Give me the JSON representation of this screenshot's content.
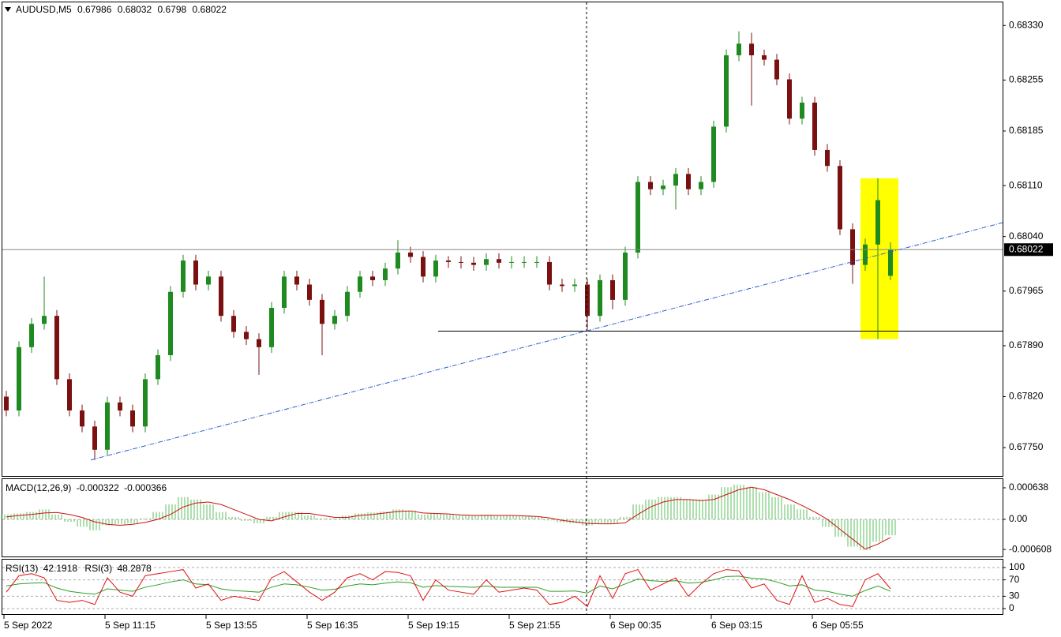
{
  "chart_data": {
    "type": "candlestick",
    "symbol": "AUDUSD,M5",
    "bull_color": "#1f8a1f",
    "bear_color": "#7a1010",
    "x_labels": [
      "5 Sep 2022",
      "5 Sep 11:15",
      "5 Sep 13:55",
      "5 Sep 16:35",
      "5 Sep 19:15",
      "5 Sep 21:55",
      "6 Sep 00:35",
      "6 Sep 03:15",
      "6 Sep 05:55"
    ],
    "ylim": [
      0.67711,
      0.68365
    ],
    "yticks": [
      {
        "value": 0.6833,
        "label": "0.68330"
      },
      0.68255,
      0.68185,
      {
        "value": 0.6811,
        "label": "0.68110"
      },
      {
        "value": 0.6804,
        "label": "0.68040"
      },
      0.67965,
      {
        "value": 0.6789,
        "label": "0.67890"
      },
      {
        "value": 0.6782,
        "label": "0.67820"
      },
      {
        "value": 0.6775,
        "label": "0.67750"
      }
    ],
    "ohlc": [
      [
        0.6782,
        0.67828,
        0.67793,
        0.67801
      ],
      [
        0.67801,
        0.67896,
        0.67793,
        0.67888
      ],
      [
        0.67888,
        0.67928,
        0.6788,
        0.6792
      ],
      [
        0.6792,
        0.67985,
        0.67912,
        0.67931
      ],
      [
        0.67931,
        0.67939,
        0.67836,
        0.67844
      ],
      [
        0.67844,
        0.67852,
        0.67793,
        0.67801
      ],
      [
        0.67801,
        0.67809,
        0.67771,
        0.67779
      ],
      [
        0.67779,
        0.67787,
        0.67733,
        0.67747
      ],
      [
        0.67747,
        0.6782,
        0.67739,
        0.67812
      ],
      [
        0.67812,
        0.6782,
        0.67793,
        0.67801
      ],
      [
        0.67801,
        0.67809,
        0.67771,
        0.67779
      ],
      [
        0.67779,
        0.67852,
        0.67771,
        0.67844
      ],
      [
        0.67844,
        0.67885,
        0.67836,
        0.67877
      ],
      [
        0.67877,
        0.67972,
        0.67869,
        0.67964
      ],
      [
        0.67964,
        0.68015,
        0.67956,
        0.68007
      ],
      [
        0.68007,
        0.68015,
        0.67966,
        0.67974
      ],
      [
        0.67974,
        0.67993,
        0.67966,
        0.67985
      ],
      [
        0.67985,
        0.67993,
        0.67923,
        0.67931
      ],
      [
        0.67931,
        0.67939,
        0.67901,
        0.67909
      ],
      [
        0.67909,
        0.67917,
        0.67891,
        0.67899
      ],
      [
        0.67899,
        0.67907,
        0.6785,
        0.67888
      ],
      [
        0.67888,
        0.6795,
        0.6788,
        0.67942
      ],
      [
        0.67942,
        0.67993,
        0.67934,
        0.67985
      ],
      [
        0.67985,
        0.67993,
        0.67966,
        0.67974
      ],
      [
        0.67974,
        0.67982,
        0.67945,
        0.67953
      ],
      [
        0.67953,
        0.67961,
        0.67877,
        0.6792
      ],
      [
        0.6792,
        0.67939,
        0.67912,
        0.67931
      ],
      [
        0.67931,
        0.67972,
        0.67923,
        0.67964
      ],
      [
        0.67964,
        0.67993,
        0.67956,
        0.67985
      ],
      [
        0.67985,
        0.67993,
        0.67972,
        0.6798
      ],
      [
        0.6798,
        0.68004,
        0.67972,
        0.67996
      ],
      [
        0.67996,
        0.68035,
        0.67988,
        0.68018
      ],
      [
        0.68018,
        0.68026,
        0.68004,
        0.68012
      ],
      [
        0.68012,
        0.6802,
        0.67977,
        0.67985
      ],
      [
        0.67985,
        0.68015,
        0.67977,
        0.68007
      ],
      [
        0.68007,
        0.68013,
        0.67997,
        0.68005
      ],
      [
        0.68005,
        0.68013,
        0.67996,
        0.68004
      ],
      [
        0.68004,
        0.68012,
        0.67993,
        0.68001
      ],
      [
        0.68001,
        0.68017,
        0.67993,
        0.68009
      ],
      [
        0.68009,
        0.68017,
        0.67996,
        0.68004
      ],
      [
        0.68004,
        0.68013,
        0.67996,
        0.68005
      ],
      [
        0.68005,
        0.68013,
        0.67997,
        0.68005
      ],
      [
        0.68005,
        0.68013,
        0.67997,
        0.68005
      ],
      [
        0.68005,
        0.68013,
        0.67966,
        0.67974
      ],
      [
        0.67974,
        0.67982,
        0.67964,
        0.67972
      ],
      [
        0.67972,
        0.67982,
        0.67964,
        0.67974
      ],
      [
        0.67974,
        0.67982,
        0.67912,
        0.67931
      ],
      [
        0.67931,
        0.67988,
        0.67923,
        0.6798
      ],
      [
        0.6798,
        0.67988,
        0.6794,
        0.67953
      ],
      [
        0.67953,
        0.68026,
        0.67945,
        0.68018
      ],
      [
        0.68018,
        0.68123,
        0.6801,
        0.68115
      ],
      [
        0.68115,
        0.68123,
        0.68097,
        0.68105
      ],
      [
        0.68105,
        0.68118,
        0.68097,
        0.6811
      ],
      [
        0.6811,
        0.68134,
        0.68077,
        0.68126
      ],
      [
        0.68126,
        0.68134,
        0.68097,
        0.68105
      ],
      [
        0.68105,
        0.68123,
        0.68097,
        0.68115
      ],
      [
        0.68115,
        0.68199,
        0.68107,
        0.68191
      ],
      [
        0.68191,
        0.68297,
        0.68183,
        0.68289
      ],
      [
        0.68289,
        0.68322,
        0.68281,
        0.68305
      ],
      [
        0.68305,
        0.6832,
        0.6822,
        0.68289
      ],
      [
        0.68289,
        0.68297,
        0.68275,
        0.68283
      ],
      [
        0.68283,
        0.68291,
        0.68248,
        0.68256
      ],
      [
        0.68256,
        0.68264,
        0.68194,
        0.68202
      ],
      [
        0.68202,
        0.68232,
        0.68194,
        0.68224
      ],
      [
        0.68224,
        0.68232,
        0.68151,
        0.68159
      ],
      [
        0.68159,
        0.68167,
        0.68129,
        0.68137
      ],
      [
        0.68137,
        0.68145,
        0.68042,
        0.6805
      ],
      [
        0.6805,
        0.68058,
        0.67975,
        0.68001
      ],
      [
        0.68001,
        0.68037,
        0.67993,
        0.68029
      ],
      [
        0.68029,
        0.6812,
        0.67899,
        0.6809
      ],
      [
        0.67986,
        0.68032,
        0.6798,
        0.68022
      ]
    ],
    "annotations": {
      "trendline": [
        0.67733,
        0.68059
      ],
      "support": 0.6791,
      "highlight": [
        0.6812,
        0.67899
      ],
      "trend_color": "#2a5fd0",
      "highlight_color": "#ffff00"
    },
    "macd": {
      "label": "MACD(12,26,9)",
      "ylim": [
        -0.00075,
        0.000813
      ],
      "yticks": [
        0.000638,
        {
          "value": 0,
          "label": "0.00"
        },
        -0.000608
      ],
      "histogram": {
        "color": "#5cbf5c",
        "values": [
          0.0001,
          0.00012,
          0.00015,
          0.0002,
          0.0001,
          -5e-05,
          -0.00015,
          -0.00022,
          -0.00012,
          -0.0001,
          -8e-05,
          2e-05,
          0.00015,
          0.0003,
          0.00045,
          0.0004,
          0.0003,
          0.00015,
          5e-05,
          -3e-05,
          -8e-05,
          5e-05,
          0.00015,
          0.00015,
          8e-05,
          2e-05,
          2e-05,
          8e-05,
          0.00012,
          0.00014,
          0.00016,
          0.0002,
          0.00018,
          0.0001,
          0.00012,
          0.0001,
          8e-05,
          8e-05,
          0.0001,
          8e-05,
          8e-05,
          8e-05,
          6e-05,
          -2e-05,
          -6e-05,
          -8e-05,
          -0.00012,
          -8e-05,
          -8e-05,
          5e-05,
          0.0003,
          0.0004,
          0.00045,
          0.00045,
          0.0004,
          0.0004,
          0.0005,
          0.00065,
          0.0007,
          0.00065,
          0.00055,
          0.00045,
          0.0003,
          0.0002,
          5e-05,
          -0.00015,
          -0.00035,
          -0.00055,
          -0.00062,
          -0.00045,
          -0.000322
        ]
      },
      "signal": {
        "color": "#d01010",
        "values": [
          5e-05,
          8e-05,
          0.0001,
          0.00013,
          0.00014,
          0.0001,
          4e-05,
          -5e-05,
          -0.0001,
          -0.00012,
          -0.0001,
          -6e-05,
          0,
          0.0001,
          0.00025,
          0.00033,
          0.00035,
          0.0003,
          0.0002,
          0.0001,
          0,
          -3e-05,
          5e-05,
          0.00012,
          0.00012,
          8e-05,
          4e-05,
          4e-05,
          8e-05,
          0.0001,
          0.00013,
          0.00016,
          0.00017,
          0.00013,
          0.00012,
          0.00011,
          9e-05,
          8e-05,
          8e-05,
          8e-05,
          8e-05,
          7e-05,
          6e-05,
          3e-05,
          -2e-05,
          -5e-05,
          -8e-05,
          -9e-05,
          -9e-05,
          -7e-05,
          0.0001,
          0.00025,
          0.00035,
          0.0004,
          0.0004,
          0.00038,
          0.0004,
          0.0005,
          0.0006,
          0.00065,
          0.0006,
          0.0005,
          0.0004,
          0.00028,
          0.00015,
          0,
          -0.0002,
          -0.0004,
          -0.0006,
          -0.0005,
          -0.000366
        ]
      }
    },
    "rsi": {
      "ylim": [
        -13.5,
        119.2
      ],
      "yticks": [
        100,
        70,
        30,
        0
      ],
      "series": [
        {
          "name": "RSI(13)",
          "color": "#2aa02a",
          "values": [
            55,
            60,
            62,
            63,
            50,
            42,
            38,
            35,
            48,
            45,
            42,
            52,
            58,
            65,
            70,
            60,
            58,
            48,
            44,
            42,
            40,
            52,
            60,
            58,
            52,
            45,
            47,
            55,
            60,
            58,
            62,
            65,
            63,
            52,
            56,
            54,
            53,
            52,
            55,
            52,
            52,
            52,
            52,
            42,
            42,
            43,
            38,
            55,
            48,
            60,
            72,
            68,
            66,
            68,
            62,
            64,
            70,
            78,
            79,
            74,
            72,
            65,
            55,
            58,
            45,
            42,
            35,
            30,
            44,
            55,
            42.1918
          ]
        },
        {
          "name": "RSI(3)",
          "color": "#e01010",
          "values": [
            40,
            80,
            85,
            75,
            20,
            15,
            20,
            10,
            75,
            40,
            30,
            80,
            85,
            90,
            95,
            50,
            60,
            20,
            30,
            25,
            20,
            75,
            90,
            65,
            40,
            20,
            40,
            75,
            85,
            70,
            90,
            88,
            80,
            20,
            70,
            45,
            40,
            35,
            70,
            40,
            45,
            50,
            45,
            10,
            15,
            30,
            5,
            80,
            25,
            85,
            95,
            45,
            60,
            75,
            30,
            60,
            85,
            95,
            92,
            50,
            60,
            20,
            10,
            80,
            15,
            25,
            10,
            5,
            70,
            85,
            48.2878
          ]
        }
      ]
    }
  }
}
